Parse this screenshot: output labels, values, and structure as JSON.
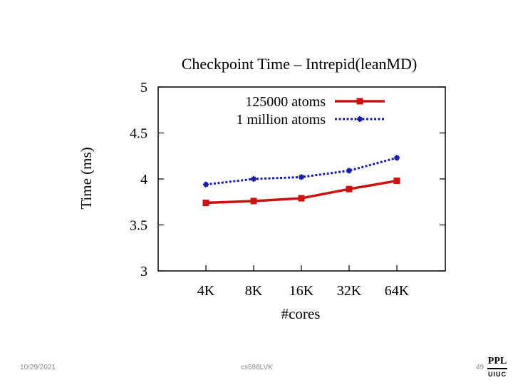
{
  "chart_data": {
    "type": "line",
    "title": "Checkpoint Time – Intrepid(leanMD)",
    "xlabel": "#cores",
    "ylabel": "Time (ms)",
    "categories": [
      "4K",
      "8K",
      "16K",
      "32K",
      "64K"
    ],
    "yticks": [
      "3",
      "3.5",
      "4",
      "4.5",
      "5"
    ],
    "ylim": [
      3,
      5
    ],
    "grid": false,
    "legend_position": "top-right",
    "series": [
      {
        "name": "125000 atoms",
        "values": [
          3.74,
          3.76,
          3.79,
          3.89,
          3.98
        ],
        "color": "#cc1111",
        "style": "solid",
        "marker": "square"
      },
      {
        "name": "1 million atoms",
        "values": [
          3.94,
          4.0,
          4.02,
          4.09,
          4.23
        ],
        "color": "#1a1aa6",
        "style": "dotted",
        "marker": "star"
      }
    ]
  },
  "footer": {
    "date": "10/29/2021",
    "course": "cs598LVK",
    "page": "49",
    "logo_top": "PPL",
    "logo_bottom": "UIUC"
  }
}
